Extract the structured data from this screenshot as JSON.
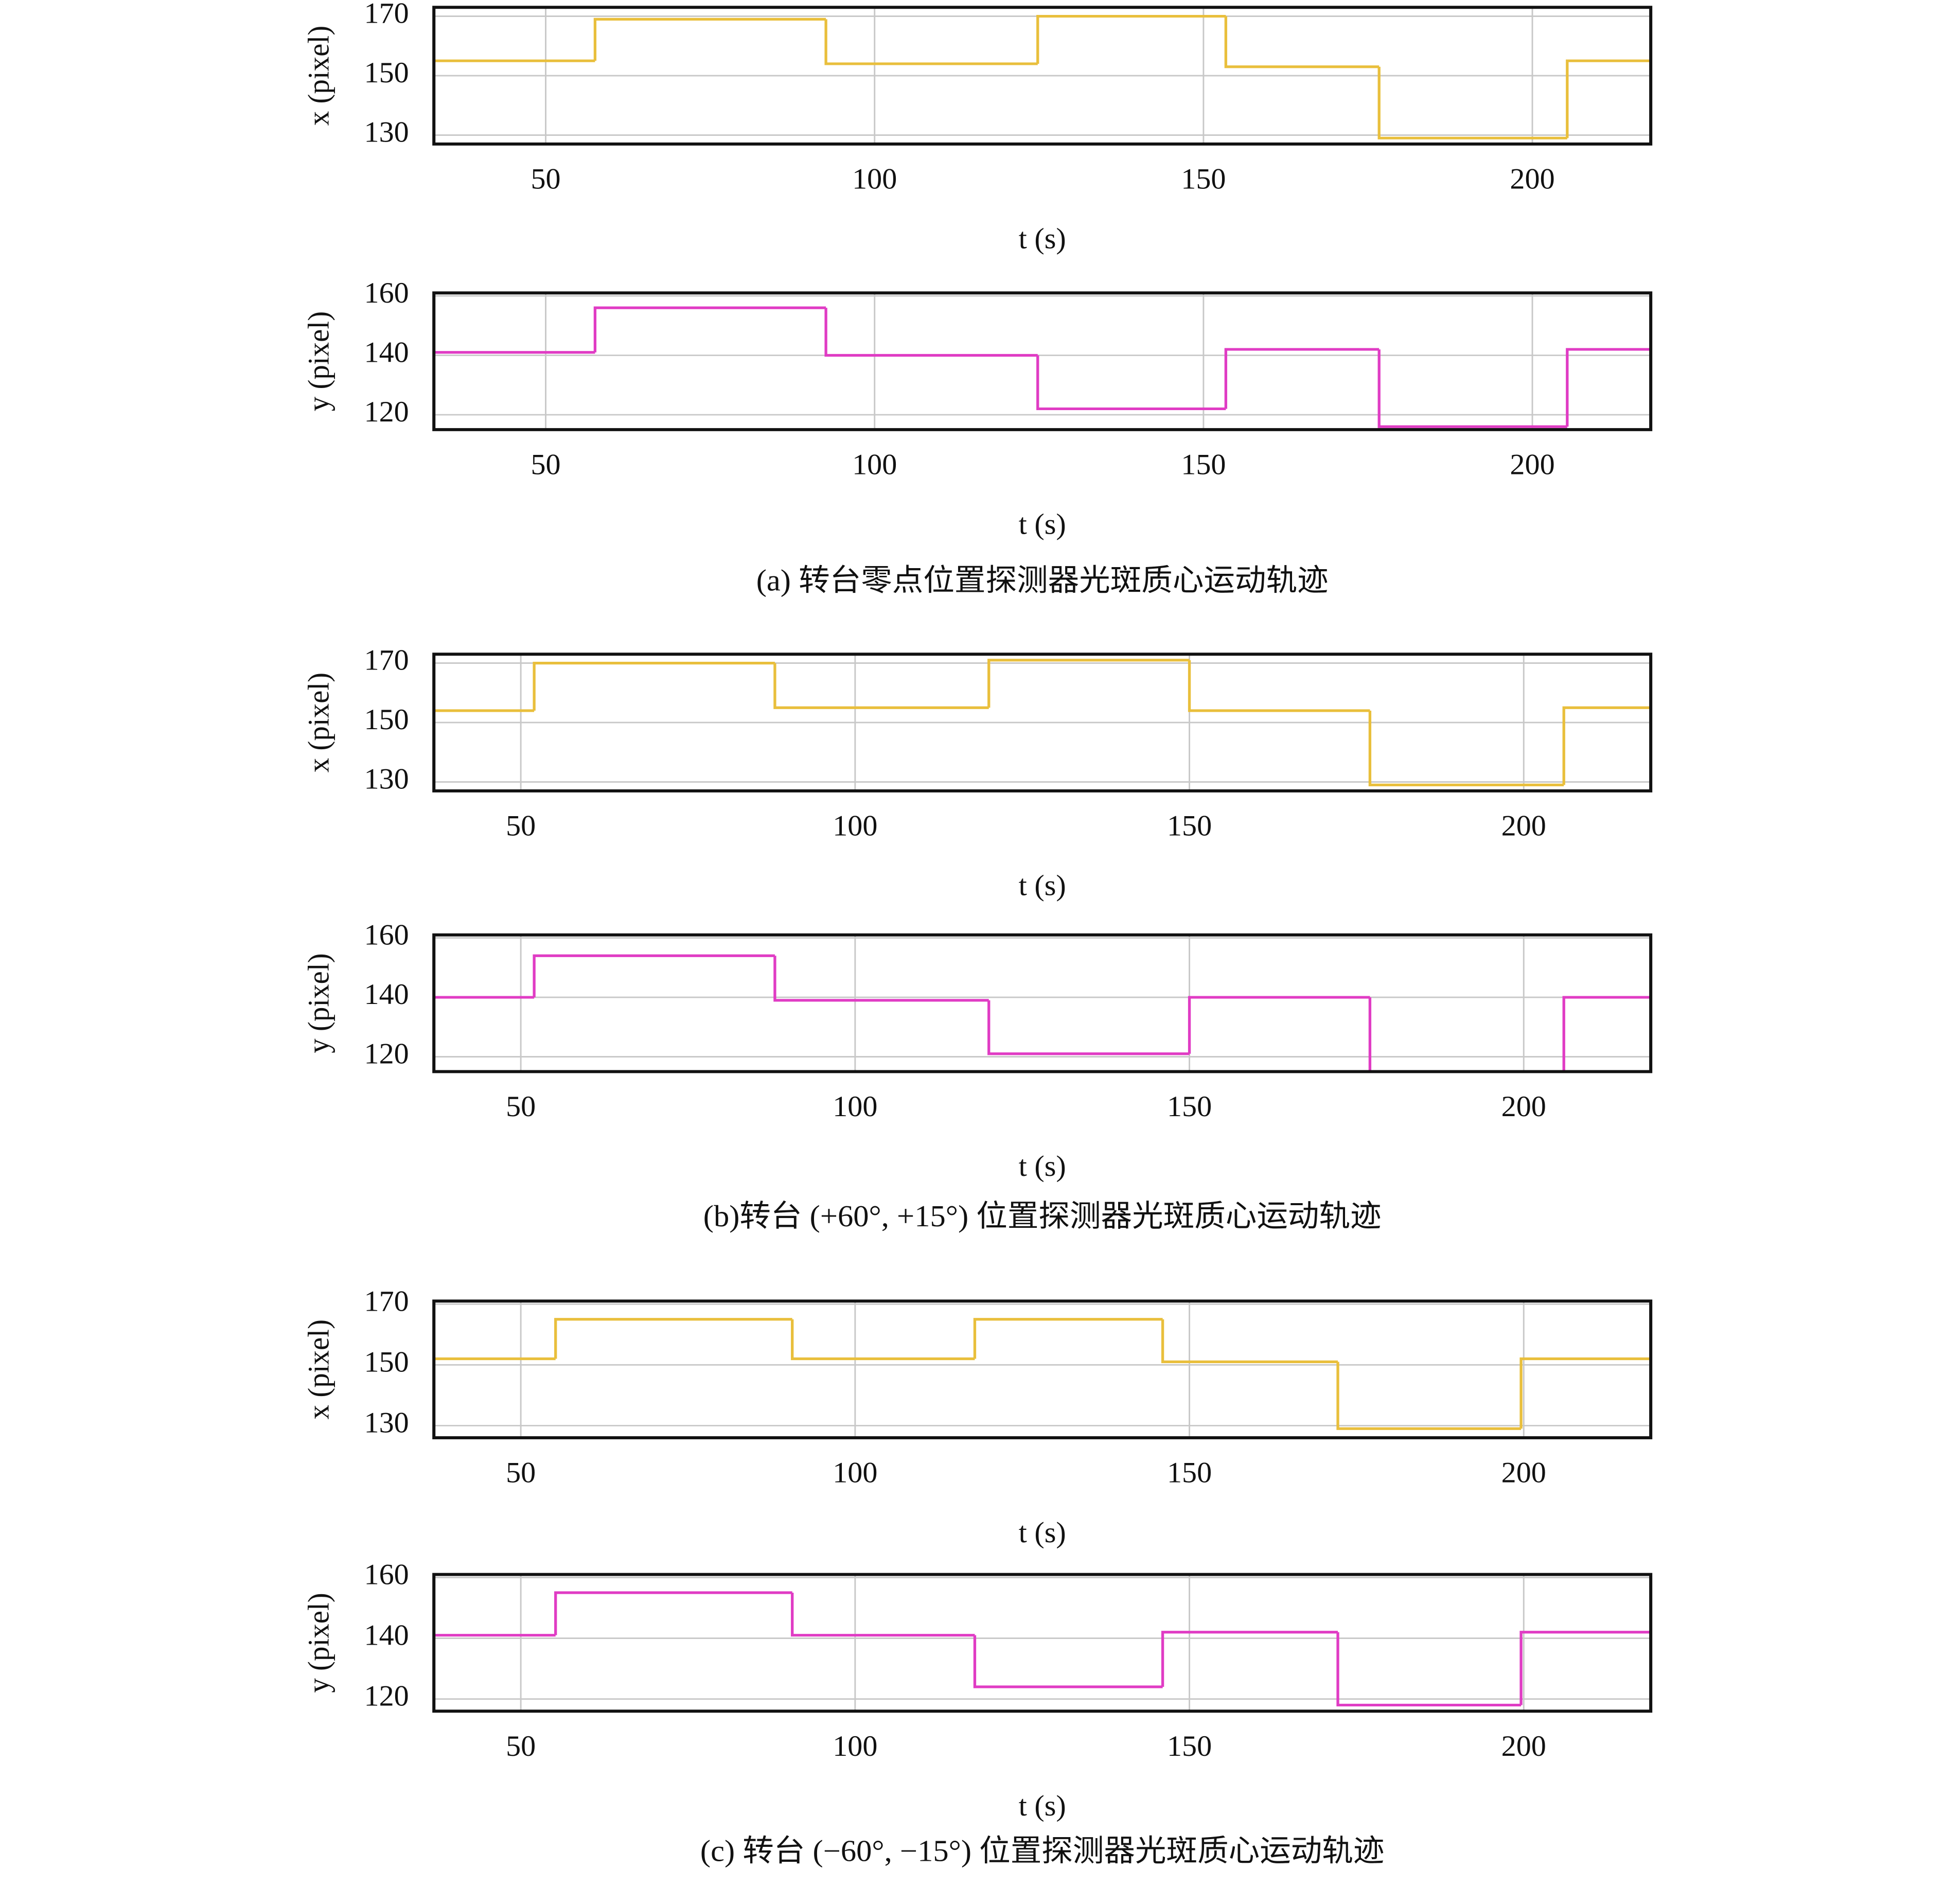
{
  "chart_data": [
    {
      "type": "line",
      "drawstyle": "steps-post",
      "xlabel": "t (s)",
      "ylabel": "x (pixel)",
      "xlim": [
        33,
        218
      ],
      "ylim": [
        127,
        173
      ],
      "xticks": [
        50,
        100,
        150,
        200
      ],
      "yticks": [
        130,
        150,
        170
      ],
      "grid": true,
      "x": [
        33,
        57.5,
        92.6,
        124.8,
        153.4,
        176.7,
        205.3
      ],
      "series": [
        {
          "color": "#e9bf3c",
          "values": [
            155,
            169,
            154,
            170,
            153,
            129,
            155
          ]
        }
      ]
    },
    {
      "type": "line",
      "drawstyle": "steps-post",
      "xlabel": "t (s)",
      "ylabel": "y (pixel)",
      "xlim": [
        33,
        218
      ],
      "ylim": [
        115,
        161
      ],
      "xticks": [
        50,
        100,
        150,
        200
      ],
      "yticks": [
        120,
        140,
        160
      ],
      "grid": true,
      "x": [
        33,
        57.5,
        92.6,
        124.8,
        153.4,
        176.7,
        205.3
      ],
      "series": [
        {
          "color": "#e03cc4",
          "values": [
            141,
            156,
            140,
            122,
            142,
            116,
            142
          ]
        }
      ]
    },
    {
      "type": "line",
      "drawstyle": "steps-post",
      "xlabel": "t (s)",
      "ylabel": "x (pixel)",
      "xlim": [
        37,
        219
      ],
      "ylim": [
        127,
        173
      ],
      "xticks": [
        50,
        100,
        150,
        200
      ],
      "yticks": [
        130,
        150,
        170
      ],
      "grid": true,
      "x": [
        37,
        52,
        88,
        120,
        150,
        177,
        206
      ],
      "series": [
        {
          "color": "#e9bf3c",
          "values": [
            154,
            170,
            155,
            171,
            154,
            129,
            155
          ]
        }
      ]
    },
    {
      "type": "line",
      "drawstyle": "steps-post",
      "xlabel": "t (s)",
      "ylabel": "y (pixel)",
      "xlim": [
        37,
        219
      ],
      "ylim": [
        115,
        161
      ],
      "xticks": [
        50,
        100,
        150,
        200
      ],
      "yticks": [
        120,
        140,
        160
      ],
      "grid": true,
      "x": [
        37,
        52,
        88,
        120,
        150,
        177,
        206
      ],
      "series": [
        {
          "color": "#e03cc4",
          "values": [
            140,
            154,
            139,
            121,
            140,
            115,
            140
          ]
        }
      ]
    },
    {
      "type": "line",
      "drawstyle": "steps-post",
      "xlabel": "t (s)",
      "ylabel": "x (pixel)",
      "xlim": [
        37,
        219
      ],
      "ylim": [
        126,
        171
      ],
      "xticks": [
        50,
        100,
        150,
        200
      ],
      "yticks": [
        130,
        150,
        170
      ],
      "grid": true,
      "x": [
        37,
        55.2,
        90.6,
        117.9,
        146,
        172.2,
        199.6
      ],
      "series": [
        {
          "color": "#e9bf3c",
          "values": [
            152,
            165,
            152,
            165,
            151,
            129,
            152
          ]
        }
      ]
    },
    {
      "type": "line",
      "drawstyle": "steps-post",
      "xlabel": "t (s)",
      "ylabel": "y (pixel)",
      "xlim": [
        37,
        219
      ],
      "ylim": [
        116,
        161
      ],
      "xticks": [
        50,
        100,
        150,
        200
      ],
      "yticks": [
        120,
        140,
        160
      ],
      "grid": true,
      "x": [
        37,
        55.2,
        90.6,
        117.9,
        146,
        172.2,
        199.6
      ],
      "series": [
        {
          "color": "#e03cc4",
          "values": [
            141,
            155,
            141,
            124,
            142,
            118,
            142
          ]
        }
      ]
    }
  ],
  "captions": [
    "(a) 转台零点位置探测器光斑质心运动轨迹",
    "(b)转台 (+60°, +15°) 位置探测器光斑质心运动轨迹",
    "(c) 转台 (−60°, −15°) 位置探测器光斑质心运动轨迹"
  ]
}
